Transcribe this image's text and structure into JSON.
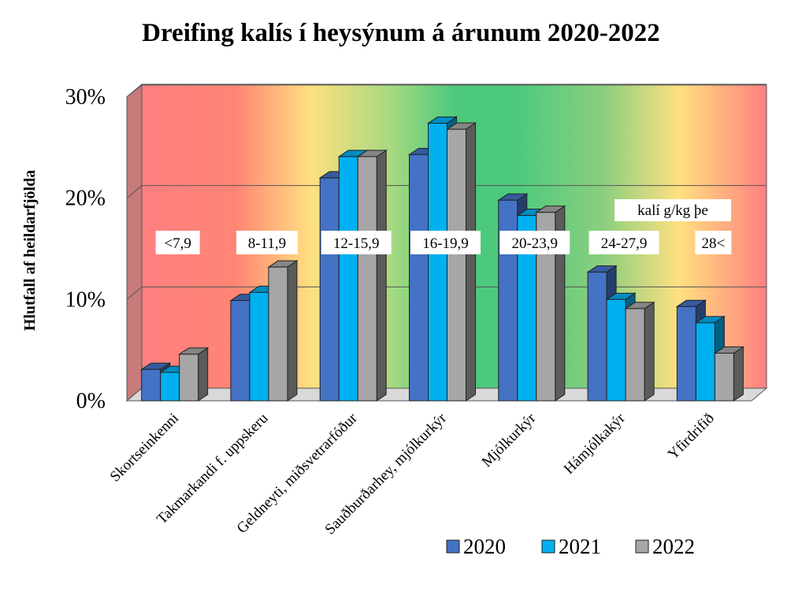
{
  "chart_data": {
    "type": "bar",
    "title": "Dreifing kalís í heysýnum á árunum 2020-2022",
    "ylabel": "Hlutfall  af heildarfjölda",
    "xlabel": "",
    "ylim": [
      0,
      30
    ],
    "yticks": [
      {
        "value": 0,
        "label": "0%"
      },
      {
        "value": 10,
        "label": "10%"
      },
      {
        "value": 20,
        "label": "20%"
      },
      {
        "value": 30,
        "label": "30%"
      }
    ],
    "categories": [
      "Skortseinkenni",
      "Takmarkandi f. uppskeru",
      "Geldneyti, miðsvetrarfóður",
      "Sauðburðarhey, mjólkurkýr",
      "Mjólkurkýr",
      "Hámjólkakýr",
      "Yfirdrifið"
    ],
    "range_labels": [
      "<7,9",
      "8-11,9",
      "12-15,9",
      "16-19,9",
      "20-23,9",
      "24-27,9",
      "28<"
    ],
    "unit_note": "kalí g/kg þe",
    "series": [
      {
        "name": "2020",
        "color": "#4472C4",
        "values": [
          3.1,
          9.9,
          22.0,
          24.3,
          19.8,
          12.7,
          9.3
        ]
      },
      {
        "name": "2021",
        "color": "#00B0F0",
        "values": [
          2.8,
          10.7,
          24.1,
          27.4,
          18.3,
          10.0,
          7.7
        ]
      },
      {
        "name": "2022",
        "color": "#A6A6A6",
        "values": [
          4.6,
          13.2,
          24.1,
          26.8,
          18.6,
          9.1,
          4.7
        ]
      }
    ],
    "legend_position": "bottom-right",
    "grid": true
  }
}
